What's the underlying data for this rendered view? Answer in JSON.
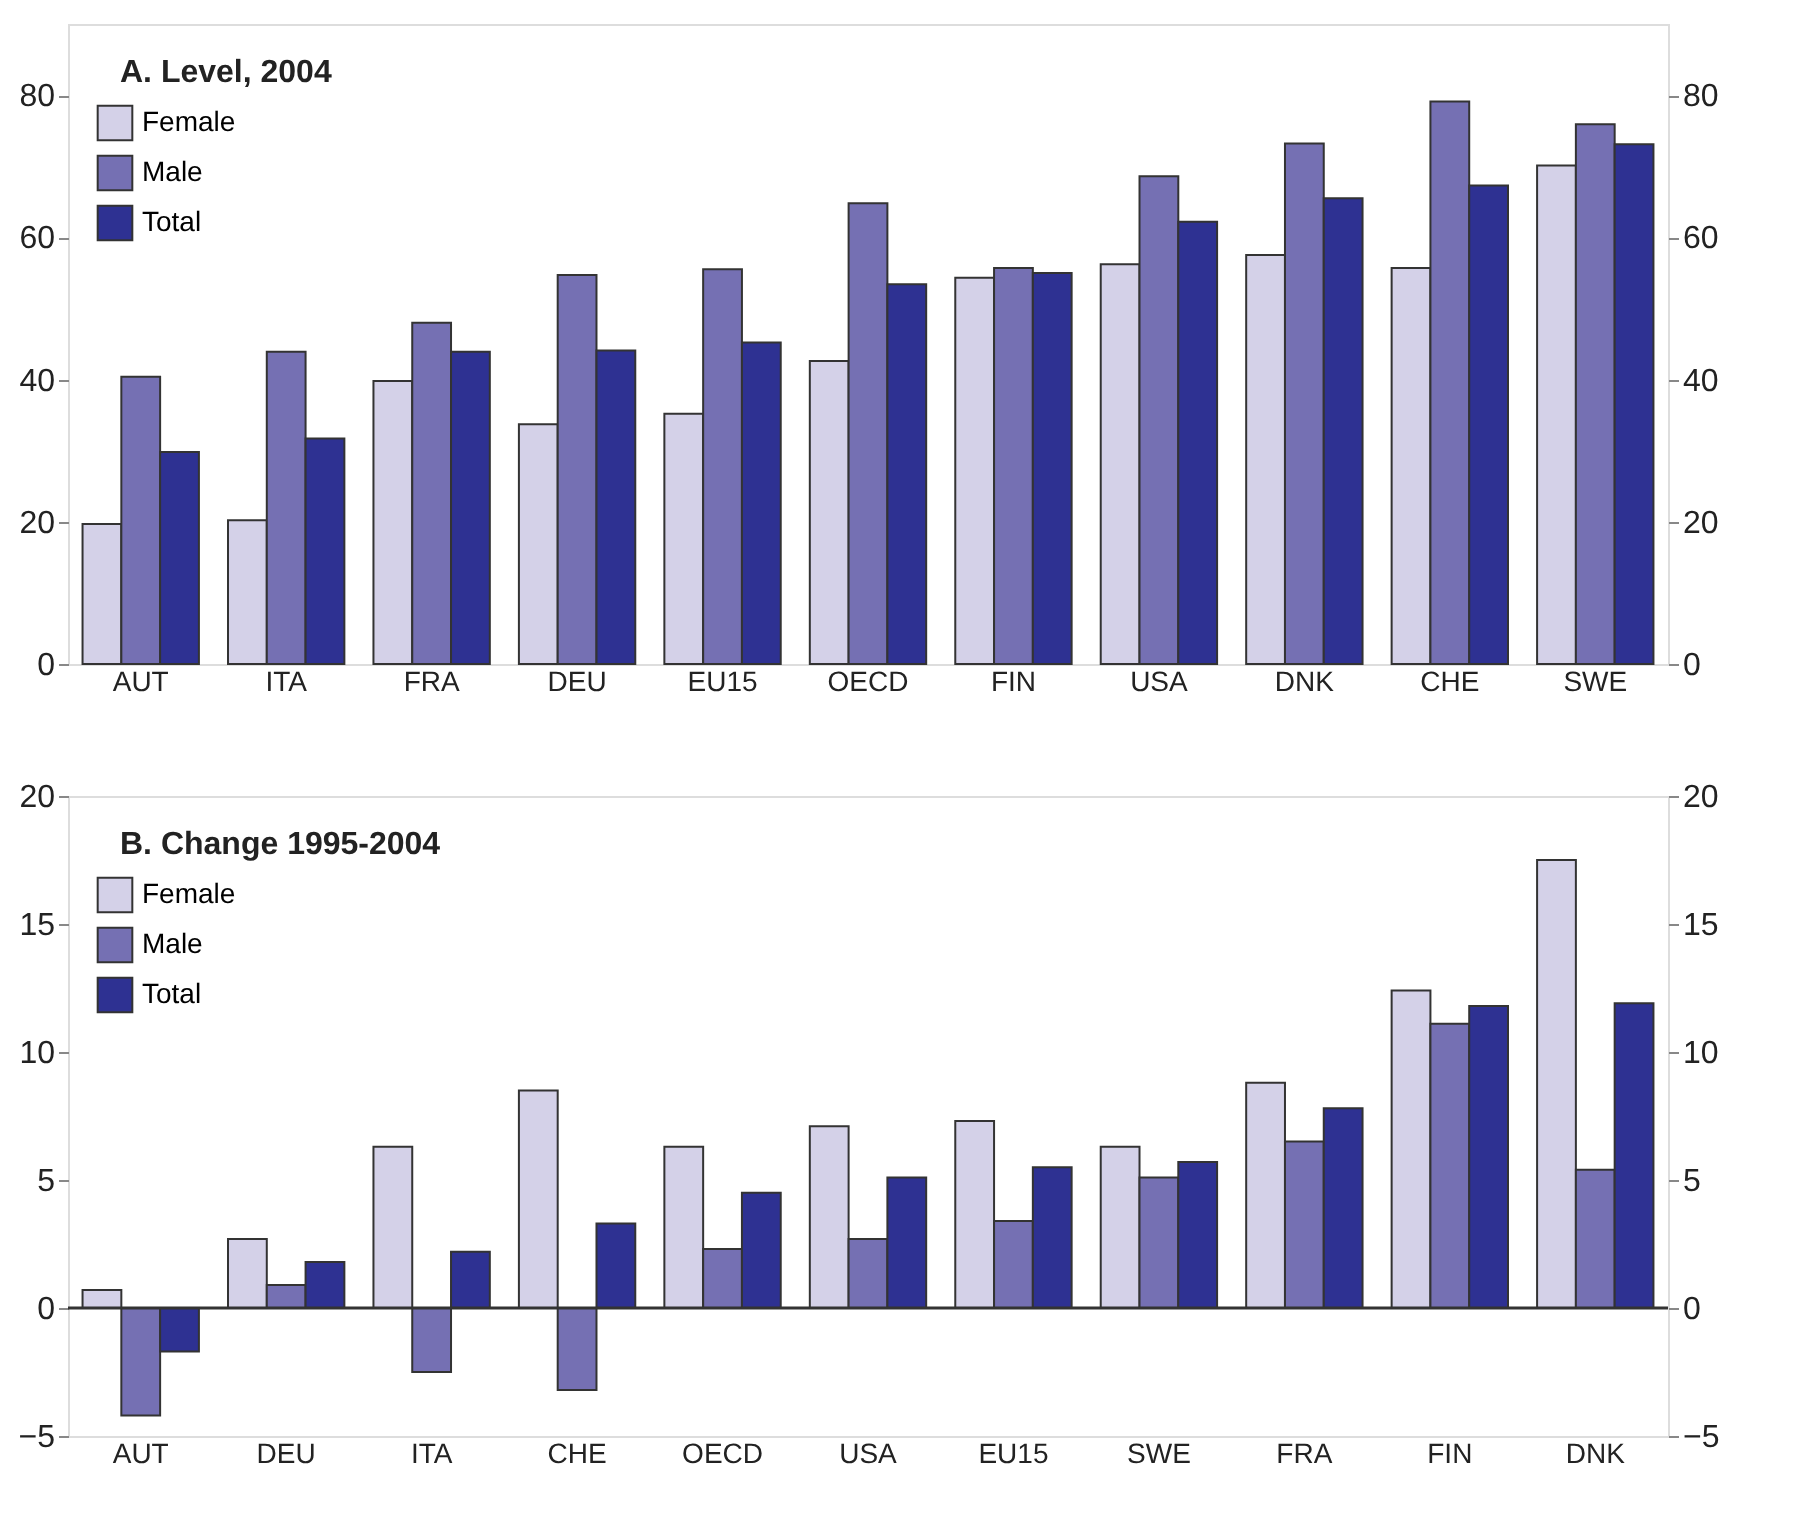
{
  "chart_data": [
    {
      "type": "bar",
      "title": "A. Level, 2004",
      "categories": [
        "AUT",
        "ITA",
        "FRA",
        "DEU",
        "EU15",
        "OECD",
        "FIN",
        "USA",
        "DNK",
        "CHE",
        "SWE"
      ],
      "series": [
        {
          "name": "Female",
          "color": "#d4d1e8",
          "values": [
            19.7,
            20.2,
            39.8,
            33.7,
            35.2,
            42.6,
            54.3,
            56.2,
            57.5,
            55.7,
            70.1
          ]
        },
        {
          "name": "Male",
          "color": "#7570b3",
          "values": [
            40.4,
            43.9,
            48.0,
            54.7,
            55.5,
            64.8,
            55.7,
            68.6,
            73.2,
            79.1,
            75.9
          ]
        },
        {
          "name": "Total",
          "color": "#2e3192",
          "values": [
            29.8,
            31.7,
            43.9,
            44.1,
            45.2,
            53.4,
            55.0,
            62.2,
            65.5,
            67.3,
            73.1
          ]
        }
      ],
      "ylim": [
        0,
        90
      ],
      "yticks": [
        0,
        20,
        40,
        60,
        80
      ],
      "y2lim": [
        0,
        90
      ],
      "y2ticks": [
        0,
        20,
        40,
        60,
        80
      ],
      "legend": "top left",
      "grid": false
    },
    {
      "type": "bar",
      "title": "B. Change 1995-2004",
      "categories": [
        "AUT",
        "DEU",
        "ITA",
        "CHE",
        "OECD",
        "USA",
        "EU15",
        "SWE",
        "FRA",
        "FIN",
        "DNK"
      ],
      "series": [
        {
          "name": "Female",
          "color": "#d4d1e8",
          "values": [
            0.7,
            2.7,
            6.3,
            8.5,
            6.3,
            7.1,
            7.3,
            6.3,
            8.8,
            12.4,
            17.5
          ]
        },
        {
          "name": "Male",
          "color": "#7570b3",
          "values": [
            -4.2,
            0.9,
            -2.5,
            -3.2,
            2.3,
            2.7,
            3.4,
            5.1,
            6.5,
            11.1,
            5.4
          ]
        },
        {
          "name": "Total",
          "color": "#2e3192",
          "values": [
            -1.7,
            1.8,
            2.2,
            3.3,
            4.5,
            5.1,
            5.5,
            5.7,
            7.8,
            11.8,
            11.9
          ]
        }
      ],
      "ylim": [
        -5,
        20
      ],
      "yticks": [
        -5,
        0,
        5,
        10,
        15,
        20
      ],
      "y2lim": [
        -5,
        20
      ],
      "y2ticks": [
        -5,
        0,
        5,
        10,
        15,
        20
      ],
      "legend": "top left",
      "grid": false,
      "ref_lines": [
        {
          "axis": "y",
          "value": 0
        }
      ]
    }
  ]
}
